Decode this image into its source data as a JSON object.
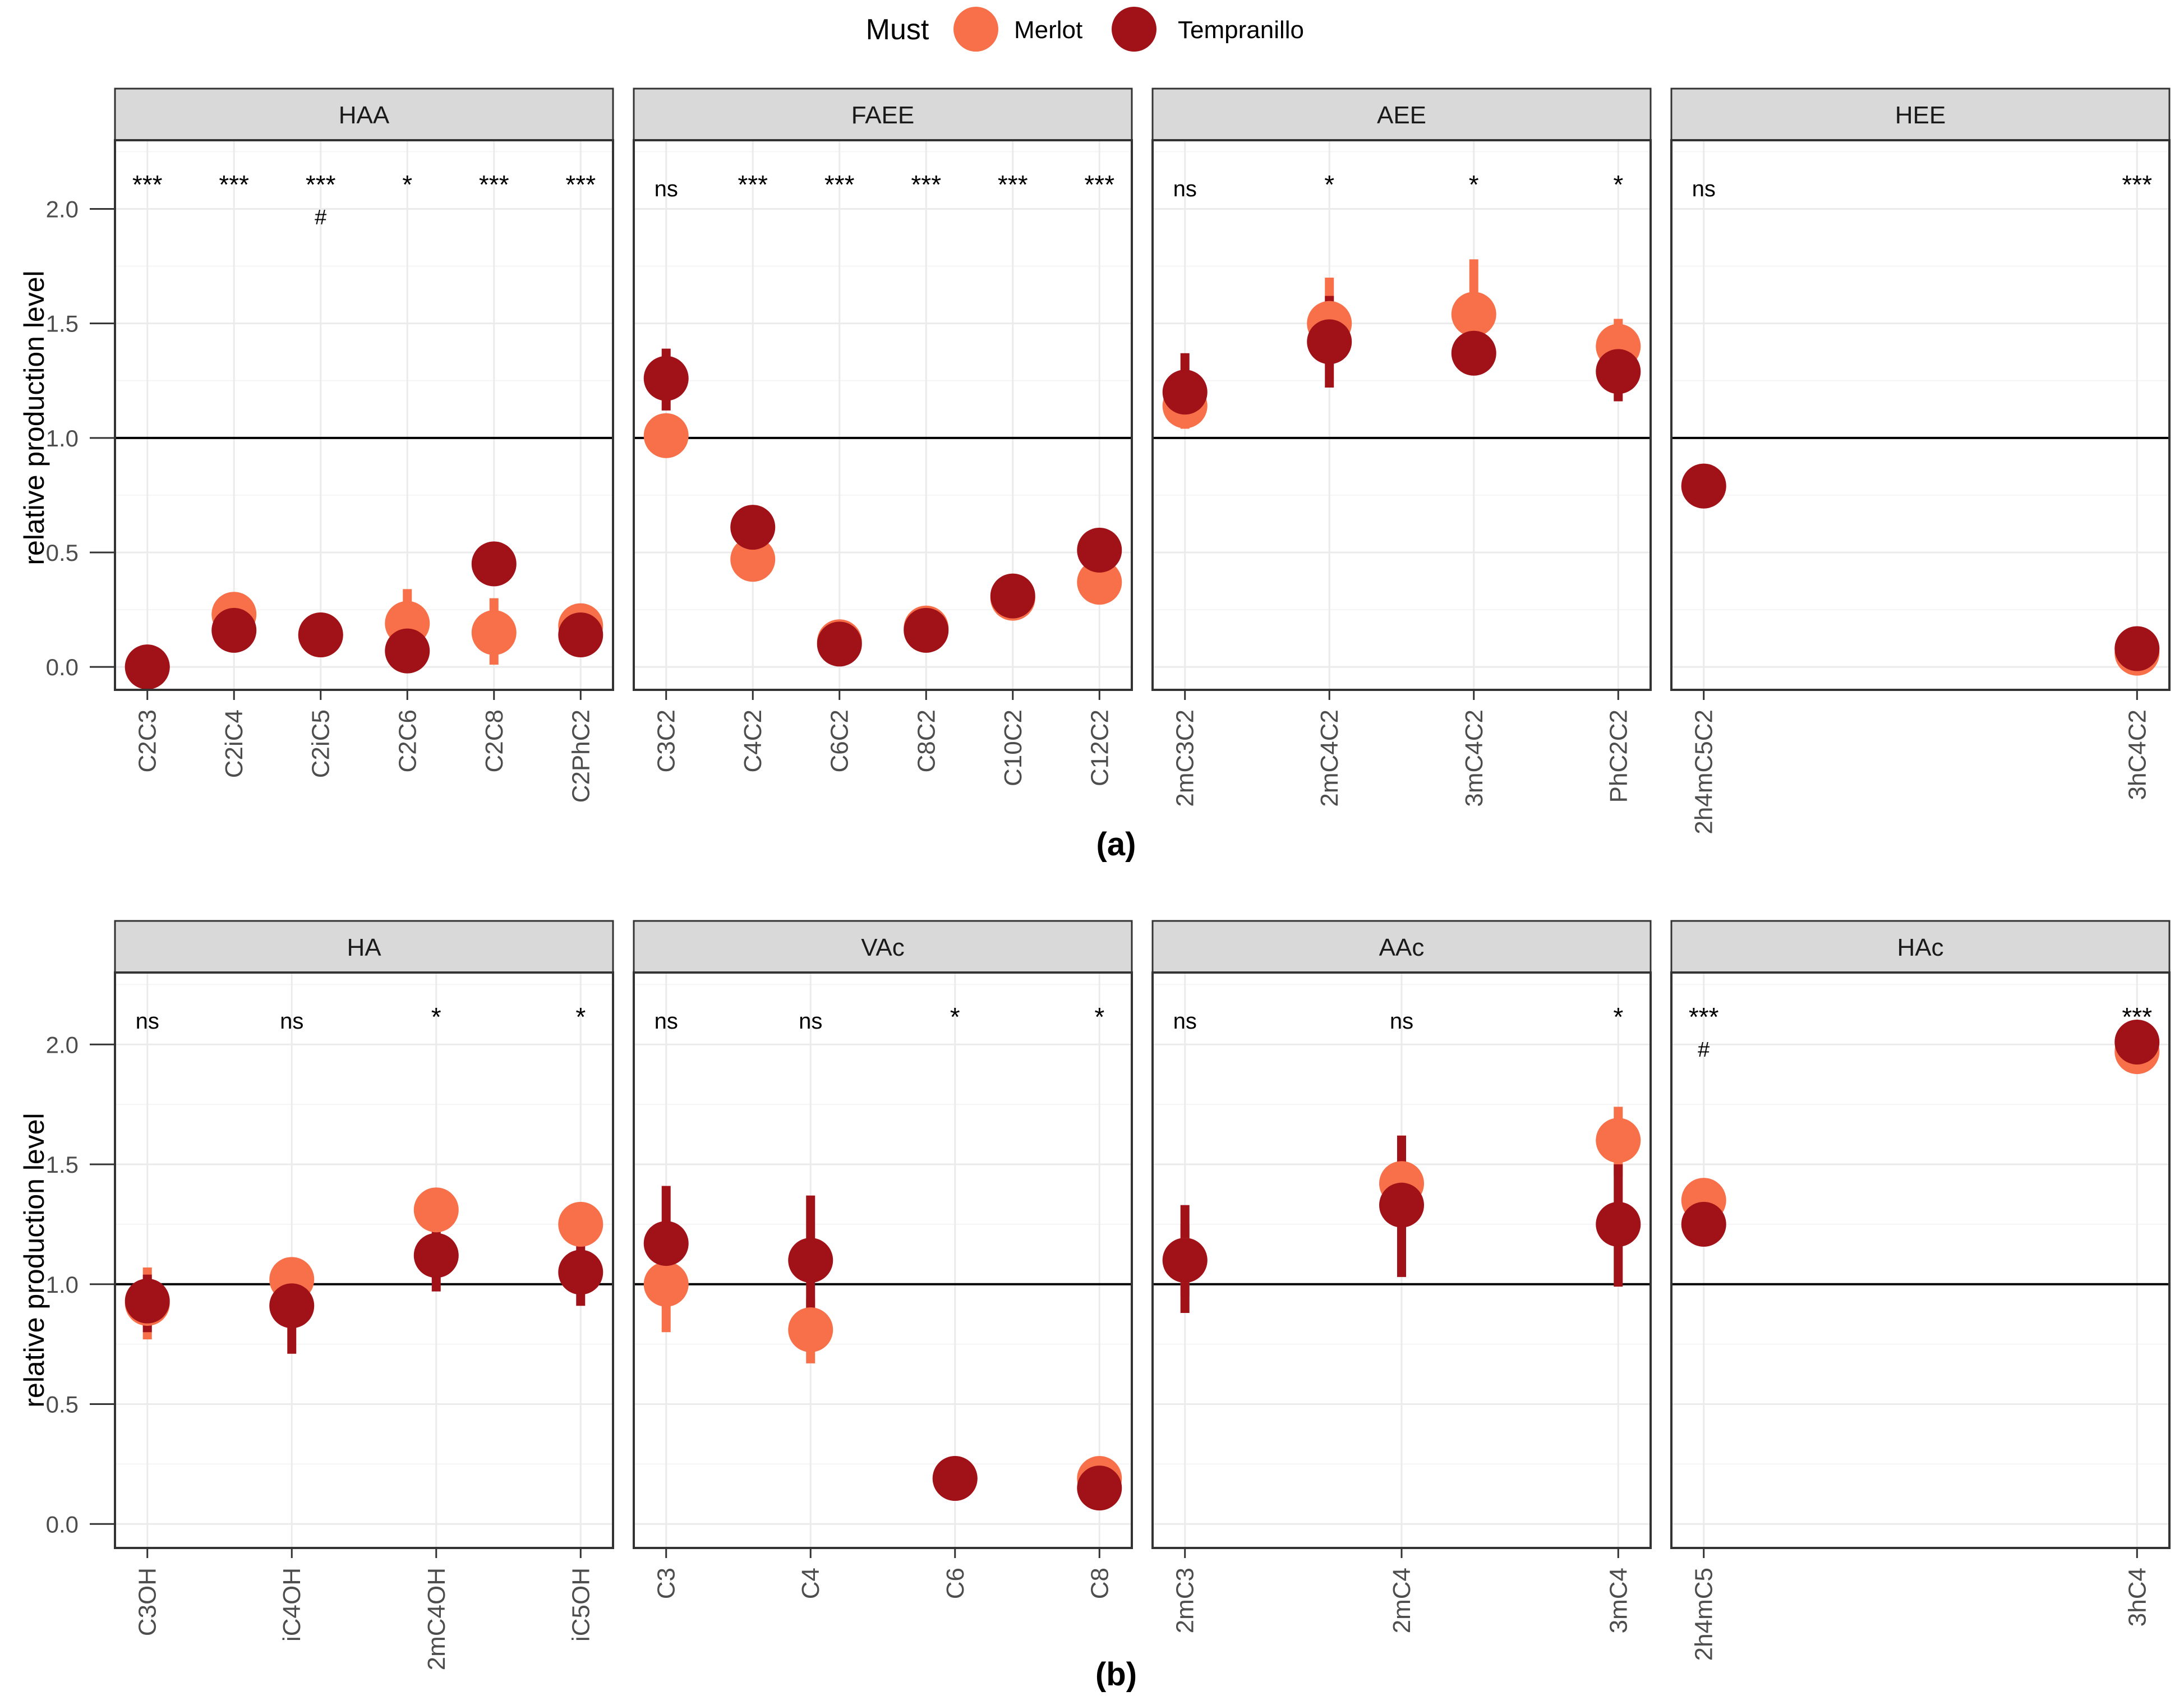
{
  "legend": {
    "title": "Must",
    "items": [
      {
        "label": "Merlot",
        "color": "#F8704A"
      },
      {
        "label": "Tempranillo",
        "color": "#A01218"
      }
    ]
  },
  "colors": {
    "merlot": "#F8704A",
    "tempranillo": "#A01218",
    "strip": "#D9D9D9",
    "grid_major": "#EBEBEB",
    "grid_minor": "#F5F5F5",
    "panel_border": "#333333",
    "reference_line": "#000000"
  },
  "chart_data": [
    {
      "type": "scatter",
      "variant": "dot-with-error-bars, faceted",
      "panel_label": "(a)",
      "ylabel": "relative production level",
      "xlabel": "",
      "ylim": [
        -0.1,
        2.3
      ],
      "yticks": [
        "0.0",
        "0.5",
        "1.0",
        "1.5",
        "2.0"
      ],
      "reference_line": 1.0,
      "grid": true,
      "series_names": [
        "Merlot",
        "Tempranillo"
      ],
      "facets": [
        {
          "title": "HAA",
          "categories": [
            "C2C3",
            "C2iC4",
            "C2iC5",
            "C2C6",
            "C2C8",
            "C2PhC2"
          ],
          "significance": [
            "***",
            "***",
            "***",
            "*",
            "***",
            "***"
          ],
          "marks": [
            "",
            "",
            "#",
            "",
            "",
            ""
          ],
          "merlot": {
            "values": [
              0.0,
              0.23,
              0.14,
              0.19,
              0.15,
              0.18
            ],
            "low": [
              0.0,
              0.21,
              0.12,
              0.05,
              0.01,
              0.13
            ],
            "high": [
              0.0,
              0.25,
              0.16,
              0.34,
              0.3,
              0.22
            ]
          },
          "tempranillo": {
            "values": [
              0.0,
              0.16,
              0.14,
              0.07,
              0.45,
              0.14
            ],
            "low": [
              0.0,
              0.14,
              0.12,
              0.03,
              0.42,
              0.11
            ],
            "high": [
              0.0,
              0.18,
              0.16,
              0.11,
              0.48,
              0.17
            ]
          }
        },
        {
          "title": "FAEE",
          "categories": [
            "C3C2",
            "C4C2",
            "C6C2",
            "C8C2",
            "C10C2",
            "C12C2"
          ],
          "significance": [
            "ns",
            "***",
            "***",
            "***",
            "***",
            "***"
          ],
          "marks": [
            "",
            "",
            "",
            "",
            "",
            ""
          ],
          "merlot": {
            "values": [
              1.01,
              0.47,
              0.11,
              0.17,
              0.3,
              0.37
            ],
            "low": [
              0.98,
              0.44,
              0.09,
              0.15,
              0.28,
              0.34
            ],
            "high": [
              1.04,
              0.5,
              0.13,
              0.19,
              0.32,
              0.4
            ]
          },
          "tempranillo": {
            "values": [
              1.26,
              0.61,
              0.1,
              0.16,
              0.31,
              0.51
            ],
            "low": [
              1.12,
              0.58,
              0.08,
              0.14,
              0.29,
              0.48
            ],
            "high": [
              1.39,
              0.64,
              0.12,
              0.18,
              0.33,
              0.54
            ]
          }
        },
        {
          "title": "AEE",
          "categories": [
            "2mC3C2",
            "2mC4C2",
            "3mC4C2",
            "PhC2C2"
          ],
          "significance": [
            "ns",
            "*",
            "*",
            "*"
          ],
          "marks": [
            "",
            "",
            "",
            ""
          ],
          "merlot": {
            "values": [
              1.14,
              1.5,
              1.54,
              1.4
            ],
            "low": [
              1.04,
              1.32,
              1.4,
              1.3
            ],
            "high": [
              1.24,
              1.7,
              1.78,
              1.52
            ]
          },
          "tempranillo": {
            "values": [
              1.2,
              1.42,
              1.37,
              1.29
            ],
            "low": [
              1.05,
              1.22,
              1.33,
              1.16
            ],
            "high": [
              1.37,
              1.62,
              1.41,
              1.42
            ]
          }
        },
        {
          "title": "HEE",
          "categories": [
            "2h4mC5C2",
            "3hC4C2"
          ],
          "significance": [
            "ns",
            "***"
          ],
          "marks": [
            "",
            ""
          ],
          "merlot": {
            "values": [
              0.79,
              0.06
            ],
            "low": [
              0.77,
              0.04
            ],
            "high": [
              0.81,
              0.08
            ]
          },
          "tempranillo": {
            "values": [
              0.79,
              0.08
            ],
            "low": [
              0.77,
              0.06
            ],
            "high": [
              0.81,
              0.1
            ]
          }
        }
      ]
    },
    {
      "type": "scatter",
      "variant": "dot-with-error-bars, faceted",
      "panel_label": "(b)",
      "ylabel": "relative production level",
      "xlabel": "",
      "ylim": [
        -0.1,
        2.3
      ],
      "yticks": [
        "0.0",
        "0.5",
        "1.0",
        "1.5",
        "2.0"
      ],
      "reference_line": 1.0,
      "grid": true,
      "series_names": [
        "Merlot",
        "Tempranillo"
      ],
      "facets": [
        {
          "title": "HA",
          "categories": [
            "C3OH",
            "iC4OH",
            "2mC4OH",
            "iC5OH"
          ],
          "significance": [
            "ns",
            "ns",
            "*",
            "*"
          ],
          "marks": [
            "",
            "",
            "",
            ""
          ],
          "merlot": {
            "values": [
              0.92,
              1.02,
              1.31,
              1.25
            ],
            "low": [
              0.77,
              0.95,
              1.26,
              1.2
            ],
            "high": [
              1.07,
              1.1,
              1.36,
              1.3
            ]
          },
          "tempranillo": {
            "values": [
              0.93,
              0.91,
              1.12,
              1.05
            ],
            "low": [
              0.8,
              0.71,
              0.97,
              0.91
            ],
            "high": [
              1.04,
              1.09,
              1.25,
              1.17
            ]
          }
        },
        {
          "title": "VAc",
          "categories": [
            "C3",
            "C4",
            "C6",
            "C8"
          ],
          "significance": [
            "ns",
            "ns",
            "*",
            "*"
          ],
          "marks": [
            "",
            "",
            "",
            ""
          ],
          "merlot": {
            "values": [
              1.0,
              0.81,
              0.19,
              0.19
            ],
            "low": [
              0.8,
              0.67,
              0.17,
              0.17
            ],
            "high": [
              1.18,
              0.94,
              0.21,
              0.21
            ]
          },
          "tempranillo": {
            "values": [
              1.17,
              1.1,
              0.19,
              0.15
            ],
            "low": [
              0.93,
              0.84,
              0.17,
              0.13
            ],
            "high": [
              1.41,
              1.37,
              0.21,
              0.17
            ]
          }
        },
        {
          "title": "AAc",
          "categories": [
            "2mC3",
            "2mC4",
            "3mC4"
          ],
          "significance": [
            "ns",
            "ns",
            "*"
          ],
          "marks": [
            "",
            "",
            ""
          ],
          "merlot": {
            "values": [
              1.1,
              1.42,
              1.6
            ],
            "low": [
              0.95,
              1.2,
              1.45
            ],
            "high": [
              1.25,
              1.62,
              1.74
            ]
          },
          "tempranillo": {
            "values": [
              1.1,
              1.33,
              1.25
            ],
            "low": [
              0.88,
              1.03,
              0.99
            ],
            "high": [
              1.33,
              1.62,
              1.5
            ]
          }
        },
        {
          "title": "HAc",
          "categories": [
            "2h4mC5",
            "3hC4"
          ],
          "significance": [
            "***",
            "***"
          ],
          "marks": [
            "#",
            ""
          ],
          "merlot": {
            "values": [
              1.35,
              1.97
            ],
            "low": [
              1.31,
              1.94
            ],
            "high": [
              1.39,
              2.0
            ]
          },
          "tempranillo": {
            "values": [
              1.25,
              2.01
            ],
            "low": [
              1.21,
              1.98
            ],
            "high": [
              1.29,
              2.04
            ]
          }
        }
      ]
    }
  ]
}
